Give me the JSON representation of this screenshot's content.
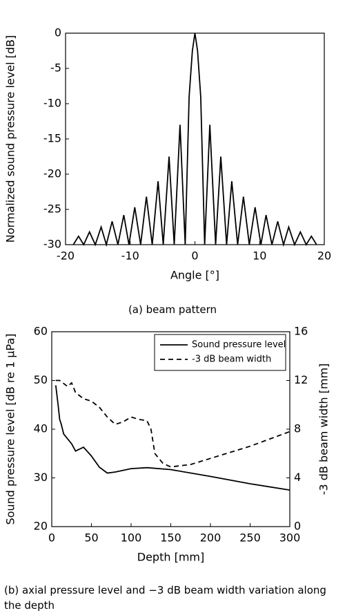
{
  "chart_data": [
    {
      "type": "line",
      "caption": "(a) beam pattern",
      "xlabel": "Angle [°]",
      "ylabel": "Normalized sound pressure level [dB]",
      "xlim": [
        -20,
        20
      ],
      "xticks": [
        -20,
        -10,
        0,
        10,
        20
      ],
      "ylim": [
        -30,
        0
      ],
      "yticks": [
        0,
        -5,
        -10,
        -15,
        -20,
        -25,
        -30
      ],
      "series": [
        {
          "color": "#000000",
          "linestyle": "solid",
          "x": [
            -18.8,
            -18.0,
            -17.2,
            -16.3,
            -15.4,
            -14.5,
            -13.7,
            -12.8,
            -11.9,
            -11.0,
            -10.2,
            -9.3,
            -8.4,
            -7.5,
            -6.6,
            -5.7,
            -4.9,
            -4.0,
            -3.2,
            -2.3,
            -1.5,
            -0.9,
            -0.4,
            0,
            0.4,
            0.9,
            1.5,
            2.3,
            3.2,
            4.0,
            4.9,
            5.7,
            6.6,
            7.5,
            8.4,
            9.3,
            10.2,
            11.0,
            11.9,
            12.8,
            13.7,
            14.5,
            15.4,
            16.3,
            17.2,
            18.0,
            18.8
          ],
          "values": [
            -30,
            -28.8,
            -30,
            -28.2,
            -30,
            -27.5,
            -30,
            -26.7,
            -30,
            -25.8,
            -30,
            -24.7,
            -30,
            -23.2,
            -30,
            -21,
            -30,
            -17.5,
            -30,
            -13,
            -30,
            -9,
            -2.5,
            0,
            -2.5,
            -9,
            -30,
            -13,
            -30,
            -17.5,
            -30,
            -21,
            -30,
            -23.2,
            -30,
            -24.7,
            -30,
            -25.8,
            -30,
            -26.7,
            -30,
            -27.5,
            -30,
            -28.2,
            -30,
            -28.8,
            -30
          ]
        }
      ]
    },
    {
      "type": "line",
      "caption": "(b) axial pressure level and −3 dB beam width variation along the depth",
      "xlabel": "Depth [mm]",
      "ylabel": "Sound pressure level [dB re 1 μPa]",
      "y2label": "-3 dB beam width [mm]",
      "xlim": [
        0,
        300
      ],
      "xticks": [
        0,
        50,
        100,
        150,
        200,
        250,
        300
      ],
      "ylim": [
        20,
        60
      ],
      "yticks": [
        20,
        30,
        40,
        50,
        60
      ],
      "y2lim": [
        0,
        16
      ],
      "y2ticks": [
        0,
        4,
        8,
        12,
        16
      ],
      "legend": "upper right",
      "series": [
        {
          "name": "Sound pressure level",
          "color": "#000000",
          "linestyle": "solid",
          "x": [
            5,
            8,
            10,
            12,
            15,
            20,
            25,
            30,
            40,
            50,
            60,
            70,
            80,
            100,
            120,
            150,
            200,
            250,
            300
          ],
          "values": [
            49,
            45,
            42,
            41,
            39,
            38,
            37,
            35.5,
            36.3,
            34.5,
            32.2,
            31,
            31.2,
            31.9,
            32.1,
            31.7,
            30.3,
            28.8,
            27.5
          ]
        },
        {
          "name": "-3 dB beam width",
          "color": "#000000",
          "linestyle": "dashed",
          "axis": "y2",
          "x": [
            5,
            10,
            20,
            25,
            30,
            40,
            50,
            60,
            70,
            80,
            90,
            100,
            110,
            120,
            125,
            130,
            140,
            150,
            175,
            200,
            250,
            300
          ],
          "values": [
            12,
            12,
            11.5,
            11.8,
            11,
            10.5,
            10.3,
            9.8,
            9,
            8.4,
            8.6,
            9,
            8.8,
            8.7,
            8,
            6,
            5.2,
            4.9,
            5.1,
            5.6,
            6.6,
            7.8
          ]
        }
      ]
    }
  ]
}
